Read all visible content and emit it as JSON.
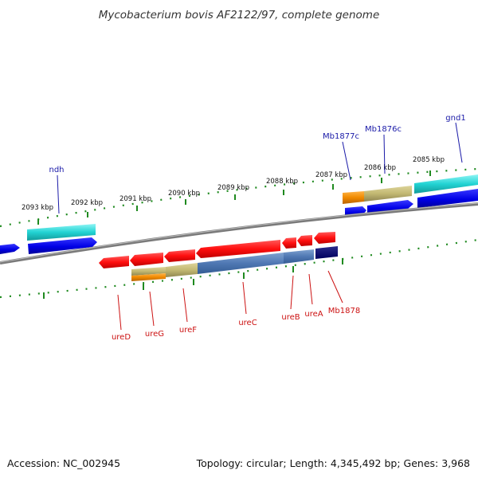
{
  "title": "Mycobacterium bovis AF2122/97, complete genome",
  "footer": {
    "accession": "Accession: NC_002945",
    "summary": "Topology: circular; Length: 4,345,492 bp; Genes: 3,968"
  },
  "colors": {
    "backbone": "#8a8a8a",
    "tick": "#1f8a1f",
    "forward_label": "#1a1aa8",
    "reverse_label": "#cc1111"
  },
  "scale_labels": [
    "2093 kbp",
    "2092 kbp",
    "2091 kbp",
    "2090 kbp",
    "2089 kbp",
    "2088 kbp",
    "2087 kbp",
    "2086 kbp",
    "2085 kbp"
  ],
  "genes_top": [
    {
      "label": "ndh"
    },
    {
      "label": "Mb1877c"
    },
    {
      "label": "Mb1876c"
    },
    {
      "label": "gnd1"
    }
  ],
  "genes_bottom": [
    {
      "label": "ureD"
    },
    {
      "label": "ureG"
    },
    {
      "label": "ureF"
    },
    {
      "label": "ureC"
    },
    {
      "label": "ureB"
    },
    {
      "label": "ureA"
    },
    {
      "label": "Mb1878"
    }
  ]
}
